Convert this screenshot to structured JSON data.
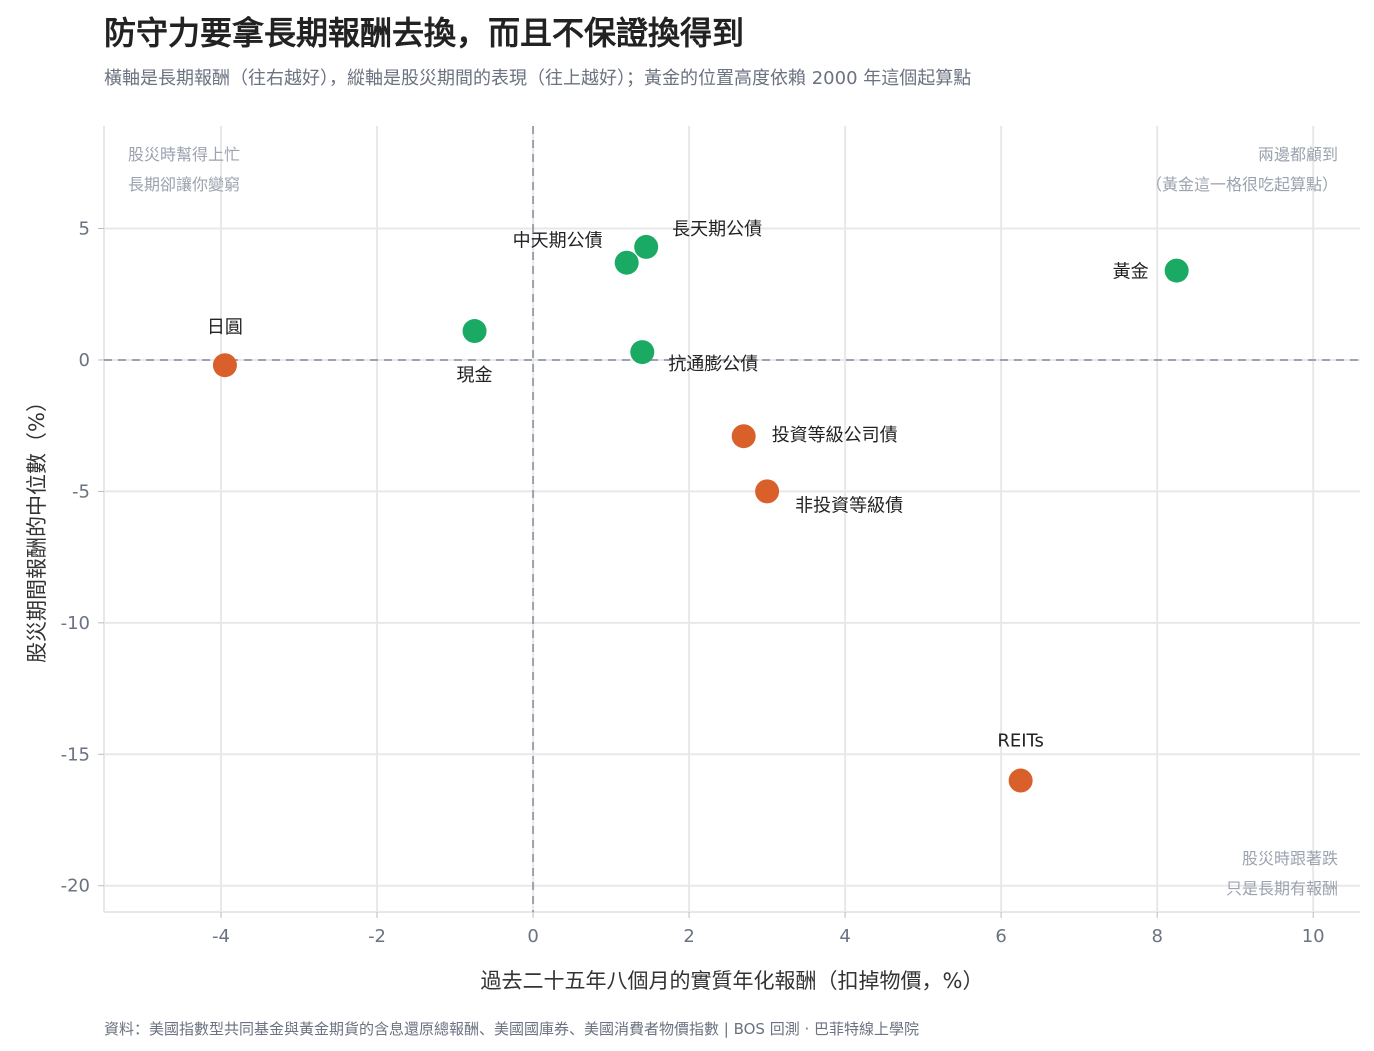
{
  "title": "防守力要拿長期報酬去換，而且不保證換得到",
  "subtitle": "橫軸是長期報酬（往右越好），縱軸是股災期間的表現（往上越好）；黃金的位置高度依賴 2000 年這個起算點",
  "footer": "資料：美國指數型共同基金與黃金期貨的含息還原總報酬、美國國庫券、美國消費者物價指數 | BOS 回測 · 巴菲特線上學院",
  "colors": {
    "defensive": "#1aaa64",
    "risky": "#d95f2b",
    "refline": "#9ca3af",
    "grid": "#e8e8e8"
  },
  "chart_data": {
    "type": "scatter",
    "xlabel": "過去二十五年八個月的實質年化報酬（扣掉物價，%）",
    "ylabel": "股災期間報酬的中位數（%）",
    "xlim": [
      -5.5,
      10.6
    ],
    "ylim": [
      -21,
      8.9
    ],
    "xticks": [
      -4,
      -2,
      0,
      2,
      4,
      6,
      8,
      10
    ],
    "yticks": [
      5,
      0,
      -5,
      -10,
      -15,
      -20
    ],
    "grid": true,
    "reference_lines": {
      "x": 0,
      "y": 0
    },
    "points": [
      {
        "label": "日圓",
        "x": -3.95,
        "y": -0.2,
        "group": "risky"
      },
      {
        "label": "現金",
        "x": -0.75,
        "y": 1.1,
        "group": "defensive"
      },
      {
        "label": "中天期公債",
        "x": 1.2,
        "y": 3.7,
        "group": "defensive"
      },
      {
        "label": "長天期公債",
        "x": 1.45,
        "y": 4.3,
        "group": "defensive"
      },
      {
        "label": "抗通膨公債",
        "x": 1.4,
        "y": 0.3,
        "group": "defensive"
      },
      {
        "label": "投資等級公司債",
        "x": 2.7,
        "y": -2.9,
        "group": "risky"
      },
      {
        "label": "非投資等級債",
        "x": 3.0,
        "y": -5.0,
        "group": "risky"
      },
      {
        "label": "黃金",
        "x": 8.25,
        "y": 3.4,
        "group": "defensive"
      },
      {
        "label": "REITs",
        "x": 6.25,
        "y": -16.0,
        "group": "risky"
      }
    ],
    "annotations": [
      {
        "position": "top-left",
        "lines": [
          "股災時幫得上忙",
          "長期卻讓你變窮"
        ]
      },
      {
        "position": "top-right",
        "lines": [
          "兩邊都顧到",
          "（黃金這一格很吃起算點）"
        ]
      },
      {
        "position": "bottom-right",
        "lines": [
          "股災時跟著跌",
          "只是長期有報酬"
        ]
      }
    ]
  }
}
